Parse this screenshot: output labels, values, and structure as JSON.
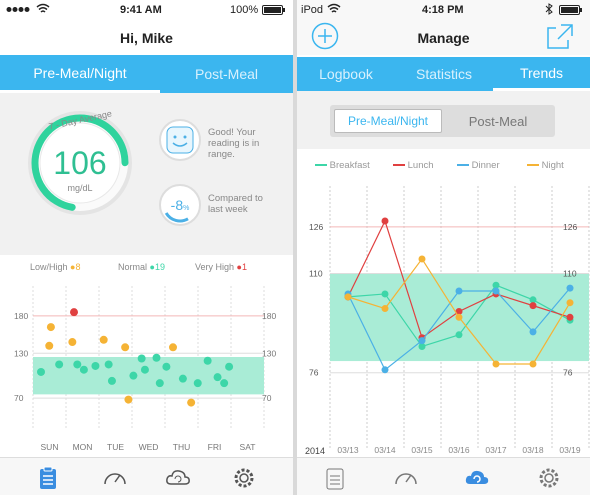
{
  "left": {
    "status": {
      "time": "9:41 AM",
      "battery": "100%"
    },
    "title": "Hi, Mike",
    "tabs": [
      {
        "label": "Pre-Meal/Night",
        "active": true
      },
      {
        "label": "Post-Meal",
        "active": false
      }
    ],
    "gauge": {
      "caption": "7 - Day Average",
      "value": "106",
      "unit": "mg/dL",
      "fill_fraction": 0.72
    },
    "mood": {
      "text": "Good! Your reading is in range."
    },
    "compare": {
      "value": "-8",
      "unit": "%",
      "text": "Compared to last week",
      "fill_fraction": 0.25
    },
    "legend": [
      {
        "label": "Low/High",
        "count": "8",
        "color": "#f5b335"
      },
      {
        "label": "Normal",
        "count": "19",
        "color": "#3dd6a8"
      },
      {
        "label": "Very High",
        "count": "1",
        "color": "#e04040"
      }
    ],
    "chart_data": {
      "type": "scatter",
      "categories": [
        "SUN",
        "MON",
        "TUE",
        "WED",
        "THU",
        "FRI",
        "SAT"
      ],
      "y_ticks": [
        70,
        130,
        180
      ],
      "ylim": [
        30,
        220
      ],
      "band": [
        75,
        125
      ],
      "points": [
        {
          "day": 0.0,
          "y": 105,
          "c": "n"
        },
        {
          "day": 0.25,
          "y": 140,
          "c": "h"
        },
        {
          "day": 0.3,
          "y": 165,
          "c": "h"
        },
        {
          "day": 0.55,
          "y": 115,
          "c": "n"
        },
        {
          "day": 1.0,
          "y": 185,
          "c": "v"
        },
        {
          "day": 0.95,
          "y": 145,
          "c": "h"
        },
        {
          "day": 1.1,
          "y": 115,
          "c": "n"
        },
        {
          "day": 1.3,
          "y": 108,
          "c": "n"
        },
        {
          "day": 1.65,
          "y": 113,
          "c": "n"
        },
        {
          "day": 1.9,
          "y": 148,
          "c": "h"
        },
        {
          "day": 2.05,
          "y": 115,
          "c": "n"
        },
        {
          "day": 2.15,
          "y": 93,
          "c": "n"
        },
        {
          "day": 2.55,
          "y": 138,
          "c": "h"
        },
        {
          "day": 2.65,
          "y": 68,
          "c": "h"
        },
        {
          "day": 2.8,
          "y": 100,
          "c": "n"
        },
        {
          "day": 3.05,
          "y": 123,
          "c": "n"
        },
        {
          "day": 3.15,
          "y": 108,
          "c": "n"
        },
        {
          "day": 3.5,
          "y": 124,
          "c": "n"
        },
        {
          "day": 3.6,
          "y": 90,
          "c": "n"
        },
        {
          "day": 3.8,
          "y": 112,
          "c": "n"
        },
        {
          "day": 4.0,
          "y": 138,
          "c": "h"
        },
        {
          "day": 4.3,
          "y": 96,
          "c": "n"
        },
        {
          "day": 4.55,
          "y": 64,
          "c": "h"
        },
        {
          "day": 4.75,
          "y": 90,
          "c": "n"
        },
        {
          "day": 5.05,
          "y": 120,
          "c": "n"
        },
        {
          "day": 5.35,
          "y": 98,
          "c": "n"
        },
        {
          "day": 5.55,
          "y": 90,
          "c": "n"
        },
        {
          "day": 5.7,
          "y": 112,
          "c": "n"
        }
      ]
    }
  },
  "right": {
    "status": {
      "carrier": "iPod",
      "time": "4:18 PM"
    },
    "title": "Manage",
    "tabs": [
      {
        "label": "Logbook",
        "active": false
      },
      {
        "label": "Statistics",
        "active": false
      },
      {
        "label": "Trends",
        "active": true
      }
    ],
    "segments": [
      {
        "label": "Pre-Meal/Night",
        "active": true
      },
      {
        "label": "Post-Meal",
        "active": false
      }
    ],
    "year": "2014",
    "chart_data": {
      "type": "line",
      "x": [
        "03/13",
        "03/14",
        "03/15",
        "03/16",
        "03/17",
        "03/18",
        "03/19"
      ],
      "y_ticks": [
        76,
        110,
        126
      ],
      "ylim": [
        55,
        140
      ],
      "band": [
        80,
        110
      ],
      "series": [
        {
          "name": "Breakfast",
          "color": "#3dd6a8",
          "values": [
            102,
            103,
            85,
            89,
            106,
            101,
            94
          ]
        },
        {
          "name": "Lunch",
          "color": "#e04040",
          "values": [
            102,
            128,
            88,
            97,
            103,
            99,
            95
          ]
        },
        {
          "name": "Dinner",
          "color": "#4bb0e6",
          "values": [
            103,
            77,
            87,
            104,
            104,
            90,
            105
          ]
        },
        {
          "name": "Night",
          "color": "#f5b335",
          "values": [
            102,
            98,
            115,
            95,
            79,
            79,
            100
          ]
        }
      ]
    }
  }
}
